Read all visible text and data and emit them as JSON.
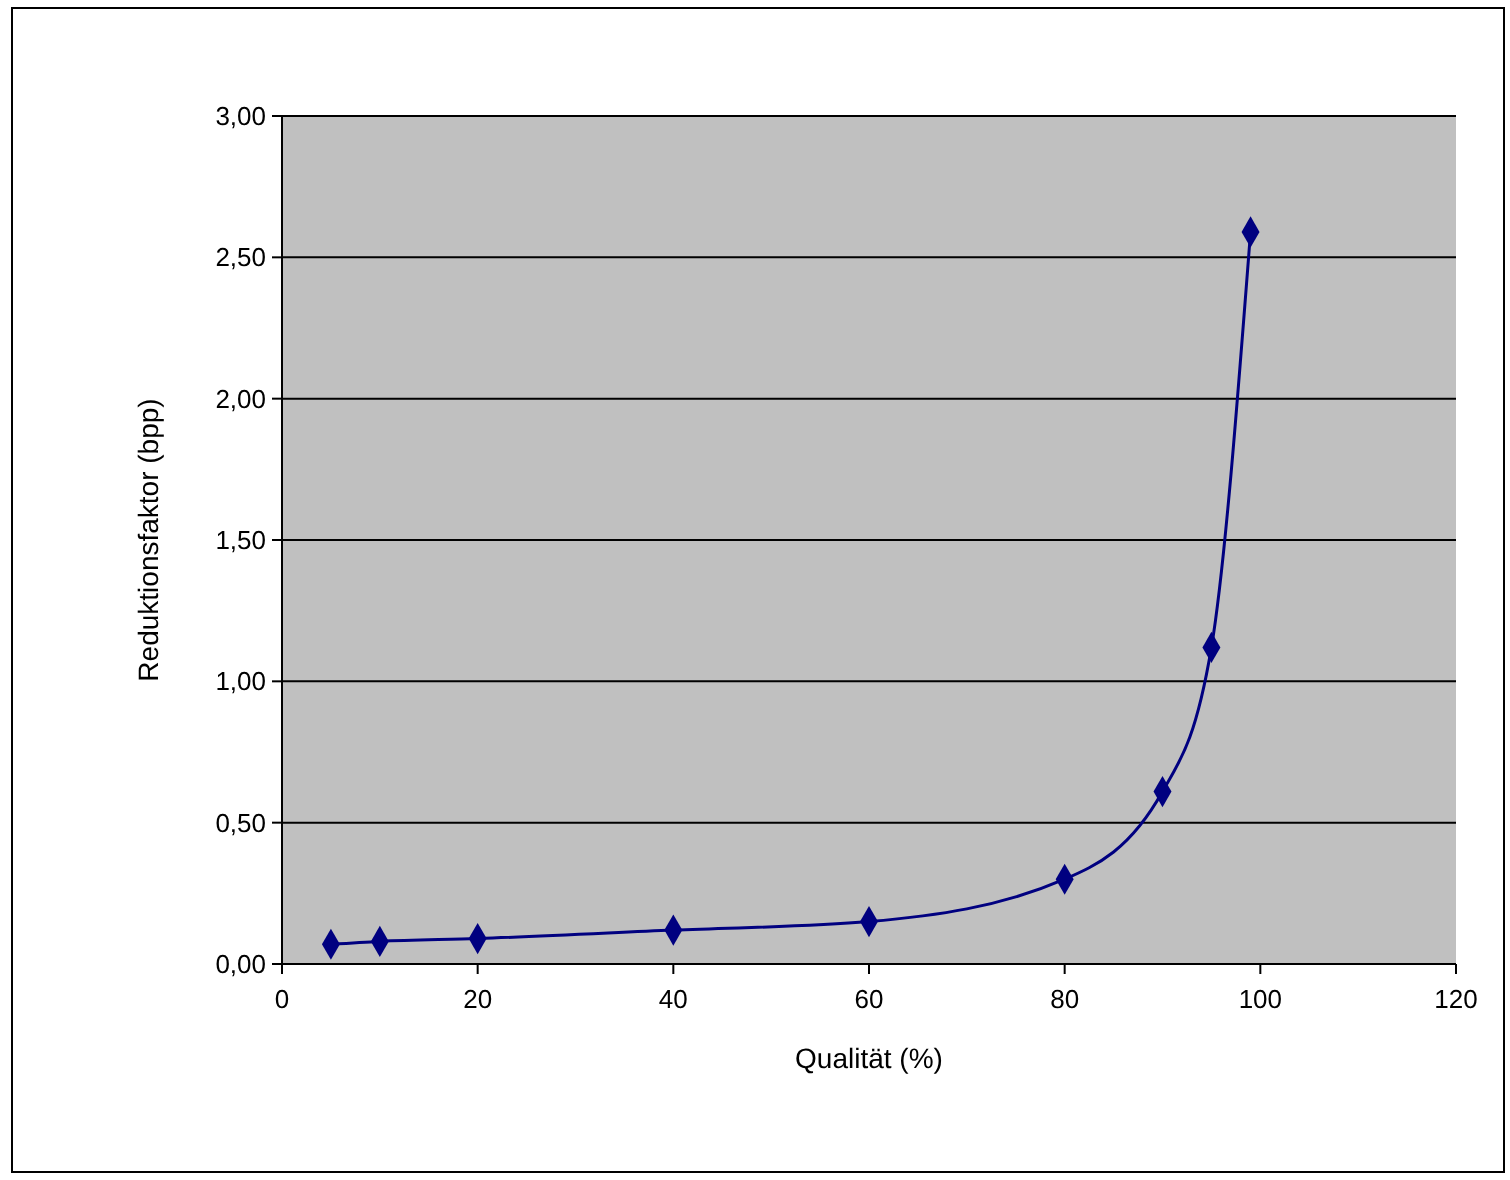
{
  "chart_data": {
    "type": "line",
    "xlabel": "Qualität (%)",
    "ylabel": "Reduktionsfaktor (bpp)",
    "x": [
      5,
      10,
      20,
      40,
      60,
      80,
      90,
      95,
      99
    ],
    "series": [
      {
        "color": "#000080",
        "values": [
          0.07,
          0.08,
          0.09,
          0.12,
          0.15,
          0.3,
          0.61,
          1.12,
          2.59
        ]
      }
    ],
    "xlim": [
      0,
      120
    ],
    "xticks": [
      0,
      20,
      40,
      60,
      80,
      100,
      120
    ],
    "ylim": [
      0,
      3
    ],
    "yticks": [
      {
        "value": 0,
        "label": "0,00"
      },
      {
        "value": 0.5,
        "label": "0,50"
      },
      {
        "value": 1,
        "label": "1,00"
      },
      {
        "value": 1.5,
        "label": "1,50"
      },
      {
        "value": 2,
        "label": "2,00"
      },
      {
        "value": 2.5,
        "label": "2,50"
      },
      {
        "value": 3,
        "label": "3,00"
      }
    ],
    "grid": "y",
    "marker": "diamond",
    "line_style": "solid"
  }
}
